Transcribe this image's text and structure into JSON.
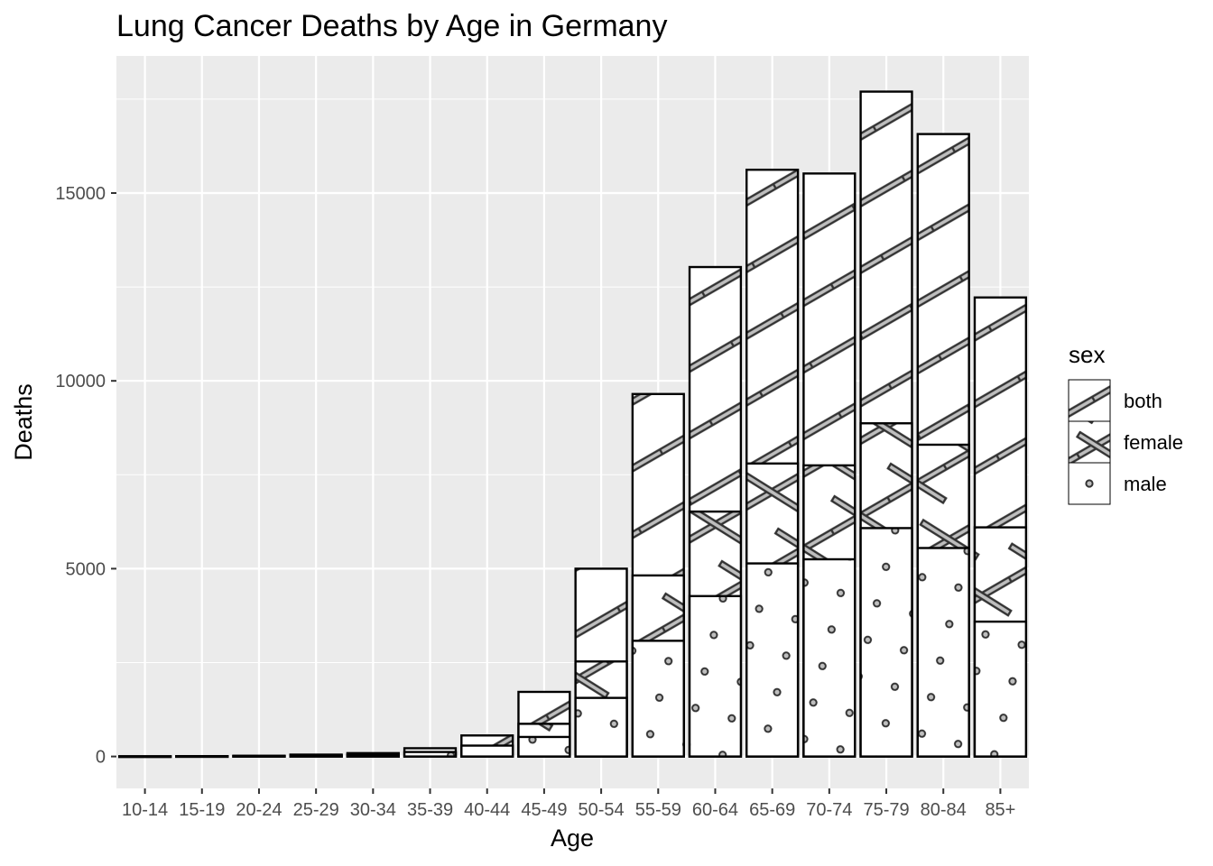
{
  "chart_data": {
    "type": "bar",
    "title": "Lung Cancer Deaths by Age in Germany",
    "xlabel": "Age",
    "ylabel": "Deaths",
    "ylim": [
      -850,
      18650
    ],
    "yticks": [
      0,
      5000,
      10000,
      15000
    ],
    "grid": true,
    "categories": [
      "10-14",
      "15-19",
      "20-24",
      "25-29",
      "30-34",
      "35-39",
      "40-44",
      "45-49",
      "50-54",
      "55-59",
      "60-64",
      "65-69",
      "70-74",
      "75-79",
      "80-84",
      "85+"
    ],
    "series": [
      {
        "name": "both",
        "pattern": "stripe",
        "values": [
          5,
          10,
          20,
          50,
          90,
          220,
          560,
          1720,
          5000,
          9650,
          13030,
          15620,
          15520,
          17700,
          16570,
          12220
        ]
      },
      {
        "name": "female",
        "pattern": "crosshatch-diagonal",
        "values": [
          2,
          4,
          8,
          20,
          40,
          100,
          280,
          870,
          2530,
          4820,
          6520,
          7800,
          7750,
          8870,
          8300,
          6100
        ]
      },
      {
        "name": "male",
        "pattern": "circle",
        "values": [
          3,
          6,
          12,
          30,
          50,
          120,
          290,
          520,
          1560,
          3080,
          4270,
          5140,
          5250,
          6080,
          5550,
          3590
        ]
      }
    ],
    "legend": {
      "title": "sex",
      "position": "right",
      "entries": [
        "both",
        "female",
        "male"
      ]
    }
  }
}
